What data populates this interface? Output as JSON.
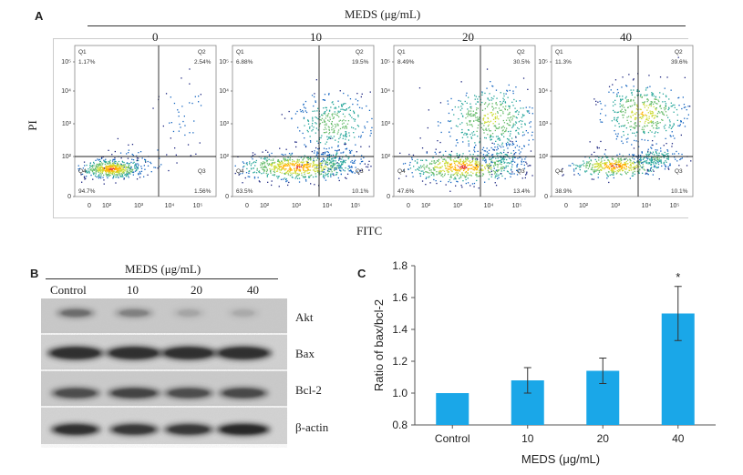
{
  "panel_a": {
    "letter": "A",
    "treatment_title": "MEDS (μg/mL)",
    "y_axis_label": "PI",
    "x_axis_label": "FITC",
    "y_ticks": [
      "10⁵",
      "10⁴",
      "10³",
      "10²",
      "0"
    ],
    "x_ticks": [
      "0",
      "10²",
      "10³",
      "10⁴",
      "10⁵"
    ],
    "plots": [
      {
        "dose": "0",
        "q1": "1.17%",
        "q2": "2.54%",
        "q3": "1.56%",
        "q4": "94.7%"
      },
      {
        "dose": "10",
        "q1": "6.88%",
        "q2": "19.5%",
        "q3": "10.1%",
        "q4": "63.5%"
      },
      {
        "dose": "20",
        "q1": "8.49%",
        "q2": "30.5%",
        "q3": "13.4%",
        "q4": "47.6%"
      },
      {
        "dose": "40",
        "q1": "11.3%",
        "q2": "39.6%",
        "q3": "10.1%",
        "q4": "38.9%"
      }
    ],
    "quadrant_names": {
      "q1": "Q1",
      "q2": "Q2",
      "q3": "Q3",
      "q4": "Q4"
    }
  },
  "panel_b": {
    "letter": "B",
    "treatment_title": "MEDS (μg/mL)",
    "lanes": [
      "Control",
      "10",
      "20",
      "40"
    ],
    "proteins": [
      "Akt",
      "Bax",
      "Bcl-2",
      "β-actin"
    ]
  },
  "chart_data": {
    "letter": "C",
    "type": "bar",
    "categories": [
      "Control",
      "10",
      "20",
      "40"
    ],
    "values": [
      1.0,
      1.08,
      1.14,
      1.5
    ],
    "errors": [
      0.0,
      0.08,
      0.08,
      0.17
    ],
    "significance": [
      "",
      "",
      "",
      "*"
    ],
    "xlabel": "MEDS (μg/mL)",
    "ylabel": "Ratio of bax/bcl-2",
    "ylim": [
      0.8,
      1.8
    ],
    "yticks": [
      "0.8",
      "1.0",
      "1.2",
      "1.4",
      "1.6",
      "1.8"
    ],
    "bar_color": "#1aa7e8"
  }
}
